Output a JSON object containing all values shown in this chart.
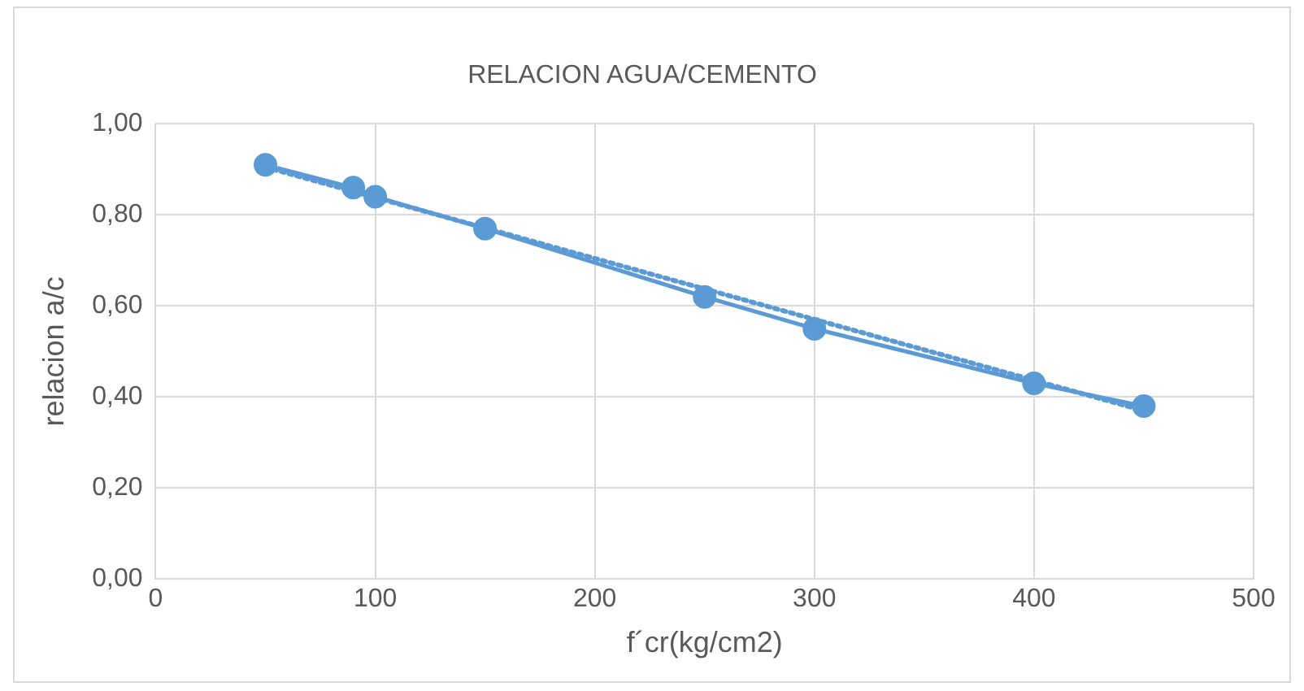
{
  "chart_data": {
    "type": "line",
    "title": "RELACION AGUA/CEMENTO",
    "xlabel": "f´cr(kg/cm2)",
    "ylabel": "relacion a/c",
    "x": [
      50,
      90,
      100,
      150,
      250,
      300,
      400,
      450
    ],
    "series": [
      {
        "type": "line",
        "color": "#5b9bd5",
        "marker": "circle",
        "line_style": "solid",
        "values": [
          0.91,
          0.86,
          0.84,
          0.77,
          0.62,
          0.55,
          0.43,
          0.38
        ]
      },
      {
        "type": "line",
        "color": "#5b9bd5",
        "marker": "none",
        "line_style": "dotted",
        "x": [
          50,
          450
        ],
        "values": [
          0.905,
          0.37
        ]
      }
    ],
    "xlim": [
      0,
      500
    ],
    "xticks": [
      0,
      100,
      200,
      300,
      400,
      500
    ],
    "ylim": [
      0,
      1
    ],
    "yticks": [
      {
        "value": 0,
        "label": "0,00"
      },
      {
        "value": 0.2,
        "label": "0,20"
      },
      {
        "value": 0.4,
        "label": "0,40"
      },
      {
        "value": 0.6,
        "label": "0,60"
      },
      {
        "value": 0.8,
        "label": "0,80"
      },
      {
        "value": 1,
        "label": "1,00"
      }
    ],
    "grid": true,
    "legend": false
  }
}
